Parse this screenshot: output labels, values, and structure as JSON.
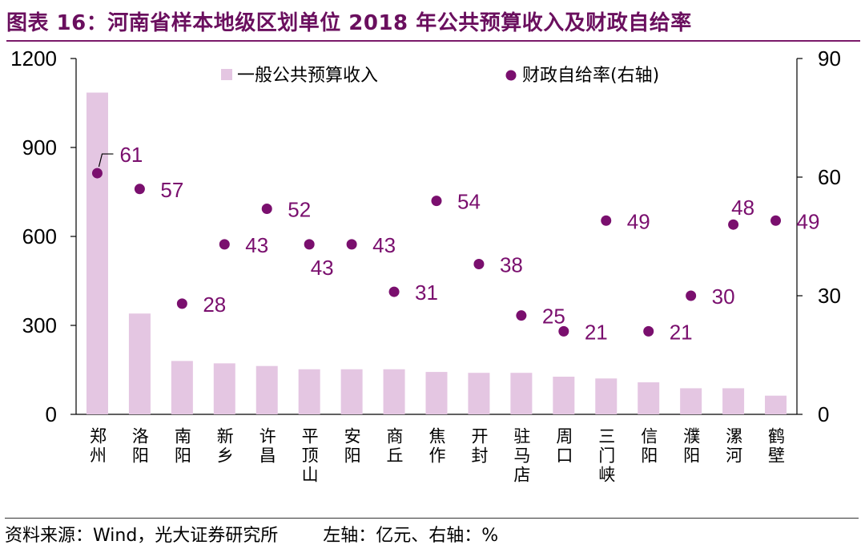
{
  "header": {
    "title": "图表 16：河南省样本地级区划单位 2018 年公共预算收入及财政自给率"
  },
  "footer": {
    "source": "资料来源：Wind，光大证券研究所",
    "axis_note": "左轴：亿元、右轴：%"
  },
  "colors": {
    "bar": "#e4c6e2",
    "dot": "#7a0f6e",
    "title": "#6a0f5e"
  },
  "chart_data": {
    "type": "bar",
    "categories": [
      "郑州",
      "洛阳",
      "南阳",
      "新乡",
      "许昌",
      "平顶山",
      "安阳",
      "商丘",
      "焦作",
      "开封",
      "驻马店",
      "周口",
      "三门峡",
      "信阳",
      "濮阳",
      "漯河",
      "鹤壁"
    ],
    "series": [
      {
        "name": "一般公共预算收入",
        "type": "bar",
        "axis": "left",
        "values": [
          1085,
          340,
          180,
          172,
          163,
          152,
          152,
          152,
          143,
          140,
          140,
          127,
          121,
          108,
          88,
          88,
          63
        ]
      },
      {
        "name": "财政自给率(右轴)",
        "type": "scatter",
        "axis": "right",
        "values": [
          61,
          57,
          28,
          43,
          52,
          43,
          43,
          31,
          54,
          38,
          25,
          21,
          49,
          21,
          30,
          48,
          49
        ]
      }
    ],
    "y_left": {
      "min": 0,
      "max": 1200,
      "ticks": [
        0,
        300,
        600,
        900,
        1200
      ]
    },
    "y_right": {
      "min": 0,
      "max": 90,
      "ticks": [
        0,
        30,
        60,
        90
      ]
    },
    "data_labels": [
      "61",
      "57",
      "28",
      "43",
      "52",
      "43",
      "43",
      "31",
      "54",
      "38",
      "25",
      "21",
      "49",
      "21",
      "30",
      "48",
      "49"
    ],
    "legend": [
      "一般公共预算收入",
      "财政自给率(右轴)"
    ],
    "legend_position": "top"
  }
}
